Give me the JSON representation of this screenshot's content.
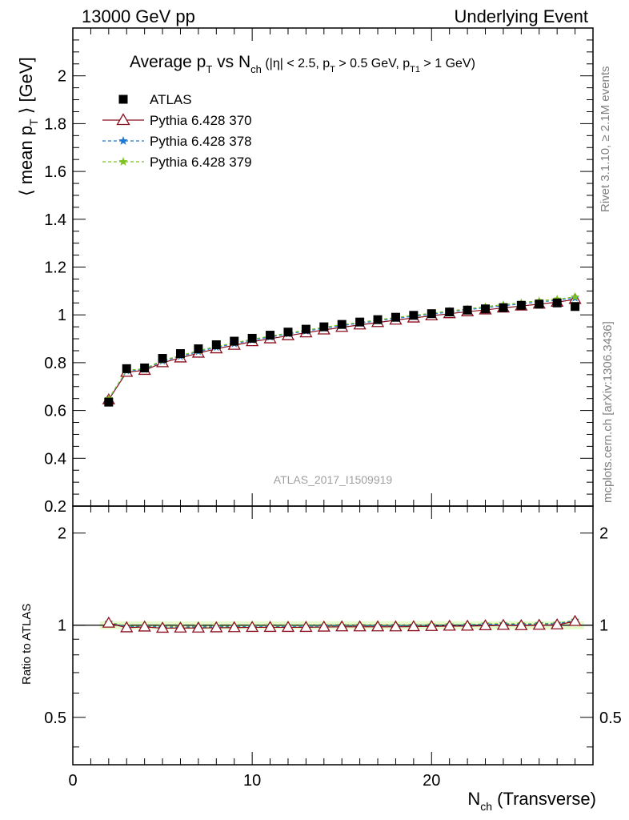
{
  "header": {
    "left": "13000 GeV pp",
    "right": "Underlying Event"
  },
  "side": {
    "rivet": "Rivet 3.1.10, ≥ 2.1M events",
    "mcplots": "mcplots.cern.ch [arXiv:1306.3436]"
  },
  "watermark": "ATLAS_2017_I1509919",
  "chart_data": [
    {
      "type": "scatter",
      "title": "Average p_T vs N_ch (|η| < 2.5, p_T > 0.5 GeV, p_T1 > 1 GeV)",
      "title_parts": {
        "a": "Average p",
        "a_sub": "T",
        "b": " vs N",
        "b_sub": "ch",
        "c": " (|η| < 2.5, p",
        "c_sub": "T",
        "d": " > 0.5 GeV, p",
        "d_sub": "T1",
        "e": " > 1 GeV)"
      },
      "ylabel": "⟨ mean p_T ⟩ [GeV]",
      "ylabel_parts": {
        "a": "⟨ mean p",
        "sub": "T",
        "b": " ⟩ [GeV]"
      },
      "xlim": [
        0,
        29
      ],
      "ylim": [
        0.2,
        2.2
      ],
      "yticks": [
        0.2,
        0.4,
        0.6,
        0.8,
        1,
        1.2,
        1.4,
        1.6,
        1.8,
        2
      ],
      "ytick_labels": [
        "0.2",
        "0.4",
        "0.6",
        "0.8",
        "1",
        "1.2",
        "1.4",
        "1.6",
        "1.8",
        "2"
      ],
      "x": [
        2,
        3,
        4,
        5,
        6,
        7,
        8,
        9,
        10,
        11,
        12,
        13,
        14,
        15,
        16,
        17,
        18,
        19,
        20,
        21,
        22,
        23,
        24,
        25,
        26,
        27,
        28
      ],
      "series": [
        {
          "name": "ATLAS",
          "color": "#000000",
          "marker": "square",
          "values": [
            0.635,
            0.775,
            0.778,
            0.818,
            0.838,
            0.858,
            0.875,
            0.89,
            0.902,
            0.915,
            0.928,
            0.94,
            0.95,
            0.96,
            0.97,
            0.98,
            0.99,
            0.998,
            1.005,
            1.012,
            1.02,
            1.025,
            1.03,
            1.04,
            1.045,
            1.05,
            1.035
          ]
        },
        {
          "name": "Pythia 6.428 370",
          "color": "#8b0e1e",
          "marker": "triangle",
          "line": "solid",
          "values": [
            0.645,
            0.76,
            0.768,
            0.8,
            0.82,
            0.84,
            0.858,
            0.873,
            0.888,
            0.9,
            0.913,
            0.925,
            0.937,
            0.948,
            0.958,
            0.968,
            0.978,
            0.987,
            0.996,
            1.005,
            1.013,
            1.021,
            1.029,
            1.037,
            1.045,
            1.053,
            1.065
          ]
        },
        {
          "name": "Pythia 6.428 378",
          "color": "#1f77d4",
          "marker": "star",
          "line": "dashed",
          "values": [
            0.648,
            0.765,
            0.772,
            0.806,
            0.826,
            0.846,
            0.864,
            0.879,
            0.894,
            0.907,
            0.92,
            0.932,
            0.944,
            0.955,
            0.965,
            0.975,
            0.985,
            0.994,
            1.003,
            1.012,
            1.021,
            1.03,
            1.038,
            1.046,
            1.054,
            1.061,
            1.07
          ]
        },
        {
          "name": "Pythia 6.428 379",
          "color": "#7cc320",
          "marker": "star",
          "line": "dashed",
          "values": [
            0.65,
            0.768,
            0.775,
            0.81,
            0.83,
            0.85,
            0.868,
            0.883,
            0.898,
            0.911,
            0.924,
            0.936,
            0.948,
            0.959,
            0.969,
            0.979,
            0.989,
            0.998,
            1.007,
            1.016,
            1.025,
            1.034,
            1.043,
            1.051,
            1.059,
            1.066,
            1.075
          ]
        }
      ],
      "legend_position": "top-left",
      "grid": false
    },
    {
      "type": "scatter",
      "ylabel": "Ratio to ATLAS",
      "xlabel": "N_ch (Transverse)",
      "xlabel_parts": {
        "a": "N",
        "sub": "ch",
        "b": " (Transverse)"
      },
      "xlim": [
        0,
        29
      ],
      "ylim": [
        0.35,
        2.45
      ],
      "yscale": "log",
      "xticks": [
        0,
        10,
        20
      ],
      "xtick_labels": [
        "0",
        "10",
        "20"
      ],
      "yticks": [
        0.5,
        1,
        2
      ],
      "ytick_labels": [
        "0.5",
        "1",
        "2"
      ],
      "band": {
        "color": "#b9f06e",
        "min": 0.97,
        "max": 1.03
      },
      "x": [
        2,
        3,
        4,
        5,
        6,
        7,
        8,
        9,
        10,
        11,
        12,
        13,
        14,
        15,
        16,
        17,
        18,
        19,
        20,
        21,
        22,
        23,
        24,
        25,
        26,
        27,
        28
      ],
      "series": [
        {
          "name": "Pythia 6.428 370",
          "values": [
            1.016,
            0.981,
            0.987,
            0.978,
            0.979,
            0.979,
            0.981,
            0.982,
            0.984,
            0.984,
            0.984,
            0.984,
            0.986,
            0.988,
            0.988,
            0.988,
            0.988,
            0.989,
            0.991,
            0.993,
            0.993,
            0.996,
            0.999,
            0.997,
            1.0,
            1.003,
            1.029
          ]
        },
        {
          "name": "Pythia 6.428 378",
          "values": [
            1.02,
            0.987,
            0.992,
            0.985,
            0.986,
            0.986,
            0.987,
            0.988,
            0.991,
            0.991,
            0.991,
            0.991,
            0.994,
            0.995,
            0.995,
            0.995,
            0.995,
            0.996,
            0.998,
            1.0,
            1.001,
            1.005,
            1.008,
            1.006,
            1.009,
            1.01,
            1.034
          ]
        },
        {
          "name": "Pythia 6.428 379",
          "values": [
            1.024,
            0.991,
            0.996,
            0.99,
            0.99,
            0.991,
            0.992,
            0.993,
            0.996,
            0.996,
            0.996,
            0.996,
            0.998,
            0.999,
            0.999,
            0.999,
            0.999,
            1.0,
            1.002,
            1.004,
            1.005,
            1.009,
            1.013,
            1.011,
            1.013,
            1.015,
            1.039
          ]
        }
      ]
    }
  ]
}
